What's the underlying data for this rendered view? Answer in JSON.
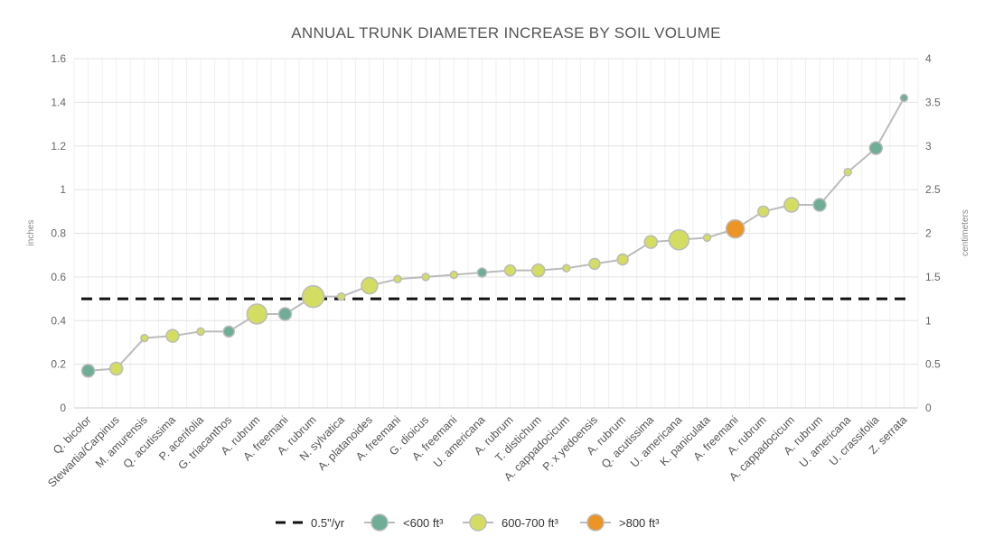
{
  "chart_data": {
    "type": "scatter",
    "title": "ANNUAL TRUNK DIAMETER INCREASE BY SOIL VOLUME",
    "ylabel": "inches",
    "ylabel_right": "centimeters",
    "ylim": [
      0,
      1.6
    ],
    "yticks": [
      "0",
      "0.2",
      "0.4",
      "0.6",
      "0.8",
      "1",
      "1.2",
      "1.4",
      "1.6"
    ],
    "ylim_right": [
      0,
      4
    ],
    "yticks_right": [
      "0",
      "0.5",
      "1",
      "1.5",
      "2",
      "2.5",
      "3",
      "3.5",
      "4"
    ],
    "grid": true,
    "legend_placement": "bottom",
    "reference_line": {
      "name": "0.5\"/yr",
      "value": 0.5,
      "color": "#111111"
    },
    "groups": [
      {
        "name": "<600 ft³",
        "color": "#6fae96"
      },
      {
        "name": "600-700 ft³",
        "color": "#d3dd62"
      },
      {
        "name": ">800 ft³",
        "color": "#ec9424"
      }
    ],
    "line_color": "#bbbbbb",
    "categories": [
      "Q. bicolor",
      "Stewartia/Carpinus",
      "M. amurensis",
      "Q. acutissima",
      "P. acerifolia",
      "G. triacanthos",
      "A. rubrum",
      "A. freemani",
      "A. rubrum",
      "N. sylvatica",
      "A. platanoides",
      "A. freemani",
      "G. dioicus",
      "A. freemani",
      "U. americana",
      "A. rubrum",
      "T. distichum",
      "A. cappadocicum",
      "P. x yedoensis",
      "A. rubrum",
      "Q. acutissima",
      "U. americana",
      "K. paniculata",
      "A. freemani",
      "A. rubrum",
      "A. cappadocicum",
      "A. rubrum",
      "U. americana",
      "U. crassifolia",
      "Z. serrata"
    ],
    "values": [
      0.17,
      0.18,
      0.32,
      0.33,
      0.35,
      0.35,
      0.43,
      0.43,
      0.51,
      0.51,
      0.56,
      0.59,
      0.6,
      0.61,
      0.62,
      0.63,
      0.63,
      0.64,
      0.66,
      0.68,
      0.76,
      0.77,
      0.78,
      0.82,
      0.9,
      0.93,
      0.93,
      1.08,
      1.19,
      1.42
    ],
    "group_index": [
      0,
      1,
      1,
      1,
      1,
      0,
      1,
      0,
      1,
      1,
      1,
      1,
      1,
      1,
      0,
      1,
      1,
      1,
      1,
      1,
      1,
      1,
      1,
      2,
      1,
      1,
      0,
      1,
      0,
      0
    ],
    "bubble_size": [
      7,
      7,
      4,
      7,
      4,
      6,
      11,
      7,
      12,
      4,
      9,
      4,
      4,
      4,
      5,
      6,
      7,
      4,
      6,
      6,
      7,
      11,
      4,
      10,
      6,
      8,
      7,
      4,
      7,
      4
    ]
  }
}
